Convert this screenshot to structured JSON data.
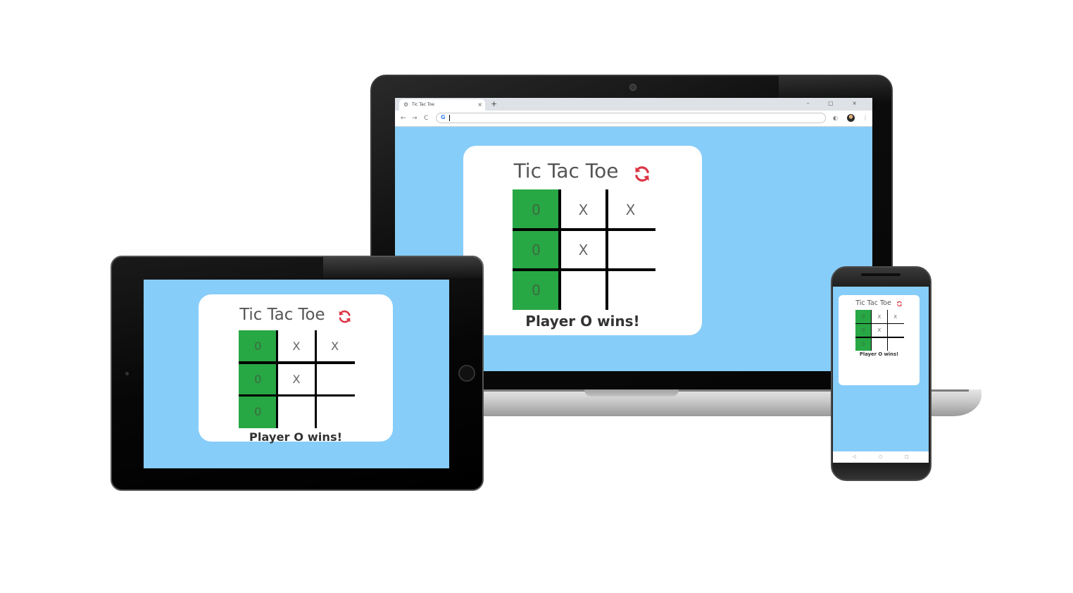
{
  "browser": {
    "tab_title": "Tic Tac Toe",
    "tab_close": "×",
    "new_tab": "+",
    "window_controls": "–  ▢  ×",
    "back": "←",
    "forward": "→",
    "reload": "C",
    "omnibox_icon": "G",
    "omnibox_value": "",
    "extension_icon": "◐",
    "menu_icon": "⋮"
  },
  "game": {
    "title": "Tic Tac Toe",
    "refresh_icon": "refresh-icon",
    "result": "Player O wins!",
    "board": [
      [
        "0",
        "X",
        "X"
      ],
      [
        "0",
        "X",
        ""
      ],
      [
        "0",
        "",
        ""
      ]
    ],
    "winning_cells": [
      [
        0,
        0
      ],
      [
        1,
        0
      ],
      [
        2,
        0
      ]
    ],
    "colors": {
      "background": "#87cdf9",
      "card": "#ffffff",
      "win": "#28a745",
      "refresh": "#dc3545",
      "grid": "#000000"
    }
  },
  "phone_nav": {
    "back": "◁",
    "home": "○",
    "recent": "□"
  }
}
